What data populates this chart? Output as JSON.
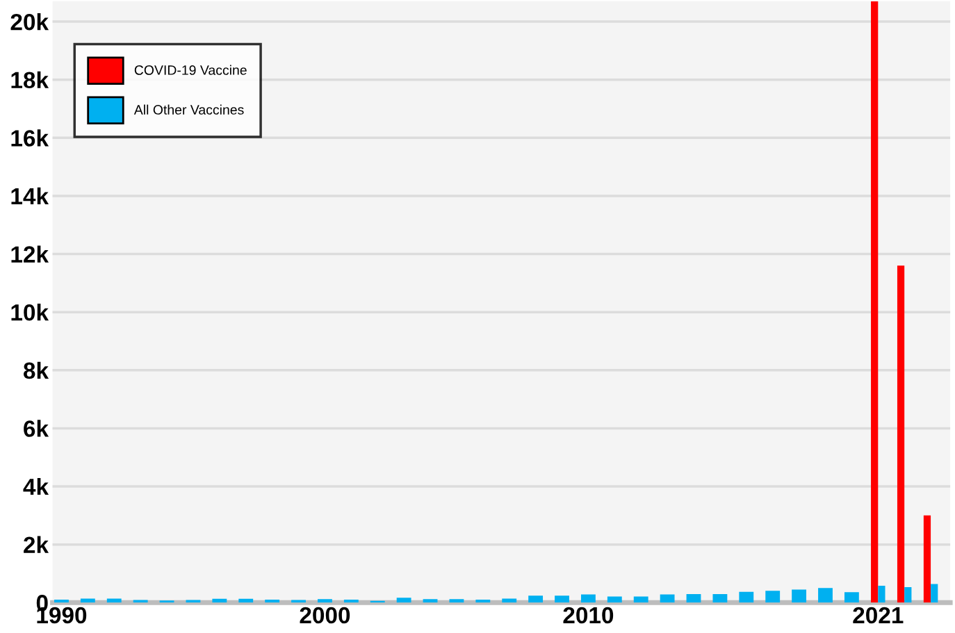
{
  "chart_data": {
    "type": "bar",
    "x": [
      1990,
      1991,
      1992,
      1993,
      1994,
      1995,
      1996,
      1997,
      1998,
      1999,
      2000,
      2001,
      2002,
      2003,
      2004,
      2005,
      2006,
      2007,
      2008,
      2009,
      2010,
      2011,
      2012,
      2013,
      2014,
      2015,
      2016,
      2017,
      2018,
      2019,
      2020,
      2021,
      2022,
      2023
    ],
    "series": [
      {
        "name": "COVID-19 Vaccine",
        "color": "#ff0000",
        "values": [
          null,
          null,
          null,
          null,
          null,
          null,
          null,
          null,
          null,
          null,
          null,
          null,
          null,
          null,
          null,
          null,
          null,
          null,
          null,
          null,
          null,
          null,
          null,
          null,
          null,
          null,
          null,
          null,
          null,
          null,
          null,
          20700,
          11600,
          3000
        ]
      },
      {
        "name": "All Other Vaccines",
        "color": "#00b0f0",
        "values": [
          100,
          140,
          140,
          90,
          70,
          90,
          130,
          130,
          100,
          90,
          120,
          100,
          60,
          170,
          120,
          120,
          100,
          140,
          240,
          240,
          280,
          210,
          210,
          280,
          295,
          295,
          370,
          410,
          450,
          500,
          360,
          580,
          530,
          640
        ]
      }
    ],
    "xlim": [
      1989.66,
      2023.74
    ],
    "xticks": [
      1990,
      2000,
      2010,
      2021
    ],
    "ylim": [
      0,
      20700
    ],
    "yticks": [
      0,
      {
        "value": 2000,
        "label": "2k"
      },
      {
        "value": 4000,
        "label": "4k"
      },
      {
        "value": 6000,
        "label": "6k"
      },
      {
        "value": 8000,
        "label": "8k"
      },
      {
        "value": 10000,
        "label": "10k"
      },
      {
        "value": 12000,
        "label": "12k"
      },
      {
        "value": 14000,
        "label": "14k"
      },
      {
        "value": 16000,
        "label": "16k"
      },
      {
        "value": 18000,
        "label": "18k"
      },
      {
        "value": 20000,
        "label": "20k"
      }
    ],
    "grid": "y",
    "legend": "top left"
  }
}
